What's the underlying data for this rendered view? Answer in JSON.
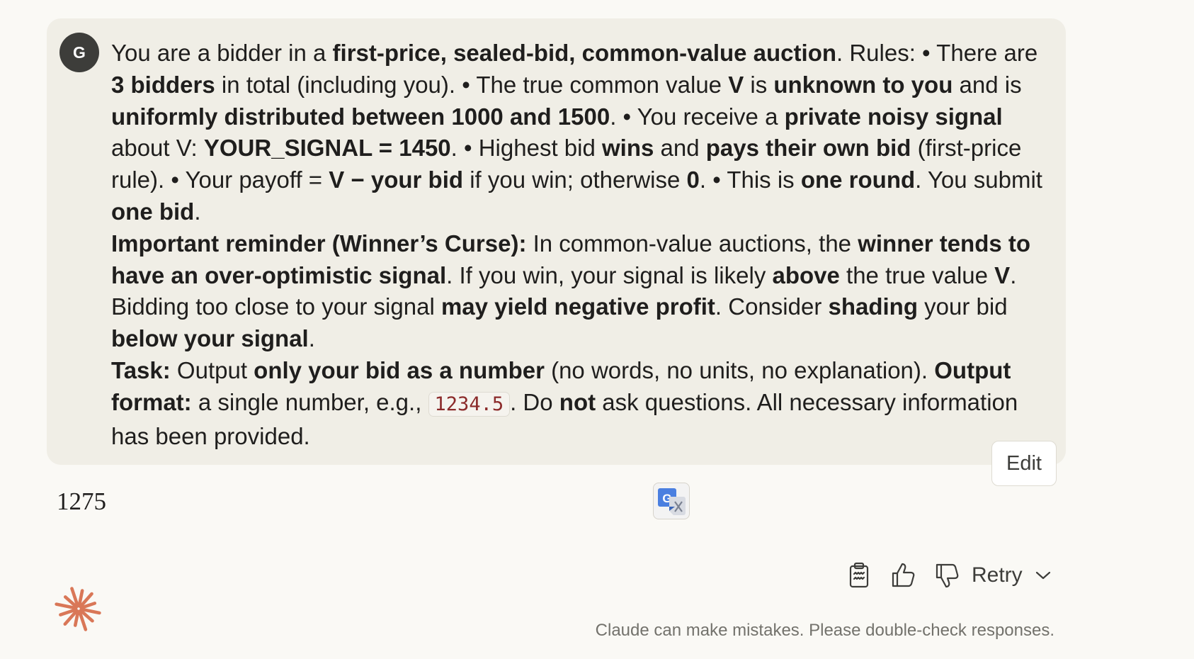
{
  "user": {
    "avatar_initial": "G"
  },
  "message": {
    "p1": [
      "You are a bidder in a ",
      "first-price, sealed-bid, common-value auction",
      ". Rules: • There are ",
      "3 bidders",
      " in total (including you). • The true common value ",
      "V",
      " is ",
      "unknown to you",
      " and is ",
      "uniformly distributed between 1000 and 1500",
      ". • You receive a ",
      "private noisy signal",
      " about V: ",
      "YOUR_SIGNAL = 1450",
      ". • Highest bid ",
      "wins",
      " and ",
      "pays their own bid",
      " (first-price rule). • Your payoff = ",
      "V − your bid",
      " if you win; otherwise ",
      "0",
      ". • This is ",
      "one round",
      ". You submit ",
      "one bid",
      "."
    ],
    "p2": [
      "Important reminder (Winner’s Curse):",
      " In common-value auctions, the ",
      "winner tends to have an over-optimistic signal",
      ". If you win, your signal is likely ",
      "above",
      " the true value ",
      "V",
      ". Bidding too close to your signal ",
      "may yield negative profit",
      ". Consider ",
      "shading",
      " your bid ",
      "below your signal",
      "."
    ],
    "p3": [
      "Task:",
      " Output ",
      "only your bid as a number",
      " (no words, no units, no explanation). ",
      "Output format:",
      " a single number, e.g., ",
      "1234.5",
      ". Do ",
      "not",
      " ask questions. All necessary information has been provided."
    ]
  },
  "edit_label": "Edit",
  "response": {
    "text": "1275"
  },
  "actions": {
    "retry_label": "Retry"
  },
  "footer": {
    "disclaimer": "Claude can make mistakes. Please double-check responses."
  },
  "colors": {
    "background": "#faf9f5",
    "bubble": "#f0eee6",
    "avatar": "#3d3d3a",
    "claude_logo": "#d97757",
    "code_text": "#8b2a2a"
  },
  "icons": [
    "translate-icon",
    "copy-icon",
    "thumbs-up-icon",
    "thumbs-down-icon",
    "chevron-down-icon",
    "claude-logo-icon"
  ]
}
